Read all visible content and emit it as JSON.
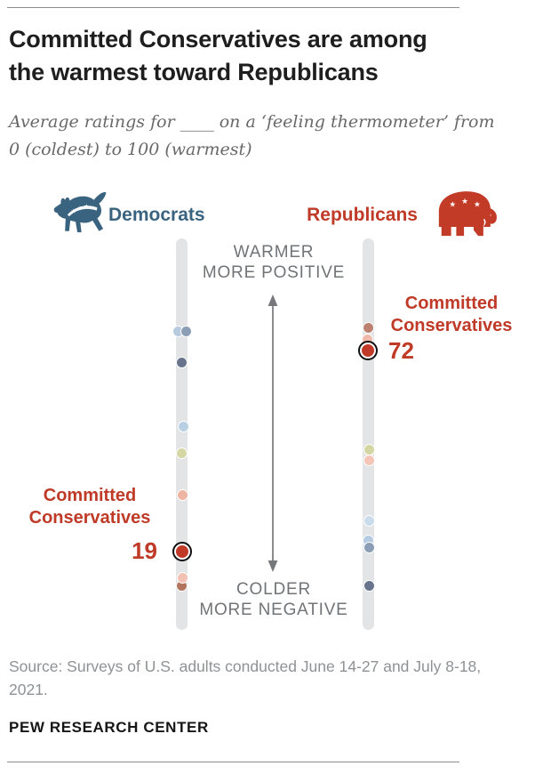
{
  "header": {
    "title_line1": "Committed Conservatives are among",
    "title_line2": "the warmest toward Republicans",
    "subtitle_line1": "Average ratings for ____ on a ‘feeling thermometer’ from",
    "subtitle_line2": "0 (coldest) to 100 (warmest)"
  },
  "parties": {
    "left": {
      "label": "Democrats",
      "color": "#3a637f",
      "icon": "donkey-icon"
    },
    "right": {
      "label": "Republicans",
      "color": "#bf3a27",
      "icon": "elephant-icon"
    }
  },
  "axis": {
    "top_line1": "WARMER",
    "top_line2": "MORE POSITIVE",
    "bottom_line1": "COLDER",
    "bottom_line2": "MORE NEGATIVE"
  },
  "annotations": {
    "left": {
      "line1": "Committed",
      "line2": "Conservatives",
      "value": "19"
    },
    "right": {
      "line1": "Committed",
      "line2": "Conservatives",
      "value": "72"
    }
  },
  "footer": {
    "source_line1": "Source: Surveys of U.S. adults conducted June 14-27 and July 8-18,",
    "source_line2": "2021.",
    "brand": "PEW RESEARCH CENTER"
  },
  "chart_data": {
    "type": "scatter",
    "title": "Committed Conservatives are among the warmest toward Republicans",
    "subtitle": "Average ratings for ____ on a ‘feeling thermometer’ from 0 (coldest) to 100 (warmest)",
    "scale": {
      "min": 0,
      "max": 100,
      "top_label": "WARMER MORE POSITIVE",
      "bottom_label": "COLDER MORE NEGATIVE"
    },
    "highlighted_group": {
      "name": "Committed Conservatives",
      "democrats_rating": 19,
      "republicans_rating": 72
    },
    "highlight_colors": {
      "dot": "#c03a27",
      "ring": "#101010"
    },
    "track_color": "#e3e4e6",
    "series": [
      {
        "name": "Average ratings for Democrats",
        "track": "democrats",
        "points": [
          {
            "value": 77,
            "color": "#b7cade",
            "dx": -5
          },
          {
            "value": 77,
            "color": "#8c9eb6",
            "dx": 4
          },
          {
            "value": 69,
            "color": "#67748c",
            "dx": -1
          },
          {
            "value": 52,
            "color": "#b9cfe3",
            "dx": 1
          },
          {
            "value": 45,
            "color": "#d4d7a4",
            "dx": -1
          },
          {
            "value": 34,
            "color": "#eeb5a3",
            "dx": 0
          },
          {
            "value": 10,
            "color": "#b2765f",
            "dx": -1
          },
          {
            "value": 12,
            "color": "#f1c1b3",
            "dx": 0
          },
          {
            "value": 19,
            "color": "#c03a27",
            "dx": 0,
            "ring": true,
            "label": "Committed Conservatives"
          }
        ]
      },
      {
        "name": "Average ratings for Republicans",
        "track": "republicans",
        "points": [
          {
            "value": 78,
            "color": "#bc8170",
            "dx": -1
          },
          {
            "value": 75,
            "color": "#f0b9ac",
            "dx": -2
          },
          {
            "value": 43,
            "color": "#f5c5b8",
            "dx": 0
          },
          {
            "value": 46,
            "color": "#d4d7a4",
            "dx": 0
          },
          {
            "value": 27,
            "color": "#cbdcec",
            "dx": 0
          },
          {
            "value": 22,
            "color": "#b4cbe2",
            "dx": -1
          },
          {
            "value": 20,
            "color": "#8c9eb6",
            "dx": 0
          },
          {
            "value": 10,
            "color": "#67748c",
            "dx": 0
          },
          {
            "value": 72,
            "color": "#c03a27",
            "dx": -1,
            "ring": true,
            "label": "Committed Conservatives"
          }
        ]
      }
    ]
  }
}
